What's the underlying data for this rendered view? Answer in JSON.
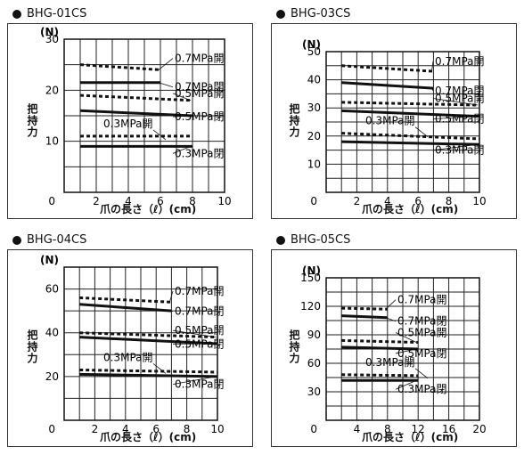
{
  "chart_data": [
    {
      "type": "line",
      "title": "BHG-01CS",
      "xlabel": "爪の長さ（ℓ）(cm)",
      "ylabel": "把持力",
      "yunit": "(N)",
      "xlim": [
        0,
        10
      ],
      "ylim": [
        0,
        30
      ],
      "xticks": [
        0,
        2,
        4,
        6,
        8,
        10
      ],
      "yticks": [
        10,
        20,
        30
      ],
      "origin_label": "0",
      "series": [
        {
          "name": "0.7MPa開",
          "style": "dotted",
          "x": [
            1,
            6
          ],
          "y": [
            25,
            24
          ]
        },
        {
          "name": "0.7MPa閉",
          "style": "solid",
          "x": [
            1,
            6
          ],
          "y": [
            21.5,
            21.5
          ]
        },
        {
          "name": "0.5MPa開",
          "style": "dotted",
          "x": [
            1,
            8
          ],
          "y": [
            19,
            18
          ]
        },
        {
          "name": "0.5MPa閉",
          "style": "solid",
          "x": [
            1,
            8
          ],
          "y": [
            16,
            15
          ]
        },
        {
          "name": "0.3MPa開",
          "style": "dotted",
          "x": [
            1,
            8
          ],
          "y": [
            11,
            11
          ]
        },
        {
          "name": "0.3MPa閉",
          "style": "solid",
          "x": [
            1,
            8
          ],
          "y": [
            9,
            9
          ]
        }
      ]
    },
    {
      "type": "line",
      "title": "BHG-03CS",
      "xlabel": "爪の長さ（ℓ）(cm)",
      "ylabel": "把持力",
      "yunit": "(N)",
      "xlim": [
        0,
        10
      ],
      "ylim": [
        0,
        50
      ],
      "xticks": [
        0,
        2,
        4,
        6,
        8,
        10
      ],
      "yticks": [
        10,
        20,
        30,
        40,
        50
      ],
      "origin_label": "0",
      "series": [
        {
          "name": "0.7MPa開",
          "style": "dotted",
          "x": [
            1,
            7
          ],
          "y": [
            45,
            43
          ]
        },
        {
          "name": "0.7MPa閉",
          "style": "solid",
          "x": [
            1,
            7
          ],
          "y": [
            39,
            37
          ]
        },
        {
          "name": "0.5MPa開",
          "style": "dotted",
          "x": [
            1,
            10
          ],
          "y": [
            32,
            31
          ]
        },
        {
          "name": "0.5MPa閉",
          "style": "solid",
          "x": [
            1,
            10
          ],
          "y": [
            29,
            27
          ]
        },
        {
          "name": "0.3MPa開",
          "style": "dotted",
          "x": [
            1,
            10
          ],
          "y": [
            21,
            19
          ]
        },
        {
          "name": "0.3MPa閉",
          "style": "solid",
          "x": [
            1,
            10
          ],
          "y": [
            18,
            17
          ]
        }
      ]
    },
    {
      "type": "line",
      "title": "BHG-04CS",
      "xlabel": "爪の長さ（ℓ）(cm)",
      "ylabel": "把持力",
      "yunit": "(N)",
      "xlim": [
        0,
        10
      ],
      "ylim": [
        0,
        70
      ],
      "xticks": [
        0,
        2,
        4,
        6,
        8,
        10
      ],
      "yticks": [
        20,
        40,
        60
      ],
      "origin_label": "0",
      "series": [
        {
          "name": "0.7MPa開",
          "style": "dotted",
          "x": [
            1,
            7
          ],
          "y": [
            56,
            54
          ]
        },
        {
          "name": "0.7MPa閉",
          "style": "solid",
          "x": [
            1,
            7
          ],
          "y": [
            53,
            50
          ]
        },
        {
          "name": "0.5MPa開",
          "style": "dotted",
          "x": [
            1,
            10
          ],
          "y": [
            40,
            38
          ]
        },
        {
          "name": "0.5MPa閉",
          "style": "solid",
          "x": [
            1,
            10
          ],
          "y": [
            38,
            35
          ]
        },
        {
          "name": "0.3MPa開",
          "style": "dotted",
          "x": [
            1,
            10
          ],
          "y": [
            23,
            22
          ]
        },
        {
          "name": "0.3MPa閉",
          "style": "solid",
          "x": [
            1,
            10
          ],
          "y": [
            21,
            20
          ]
        }
      ]
    },
    {
      "type": "line",
      "title": "BHG-05CS",
      "xlabel": "爪の長さ（ℓ）(cm)",
      "ylabel": "把持力",
      "yunit": "(N)",
      "xlim": [
        0,
        20
      ],
      "ylim": [
        0,
        150
      ],
      "xticks": [
        0,
        4,
        8,
        12,
        16,
        20
      ],
      "yticks": [
        30,
        60,
        90,
        120,
        150
      ],
      "origin_label": "0",
      "series": [
        {
          "name": "0.7MPa開",
          "style": "dotted",
          "x": [
            2,
            8
          ],
          "y": [
            118,
            117
          ]
        },
        {
          "name": "0.7MPa閉",
          "style": "solid",
          "x": [
            2,
            8
          ],
          "y": [
            110,
            108
          ]
        },
        {
          "name": "0.5MPa開",
          "style": "dotted",
          "x": [
            2,
            12
          ],
          "y": [
            84,
            82
          ]
        },
        {
          "name": "0.5MPa閉",
          "style": "solid",
          "x": [
            2,
            12
          ],
          "y": [
            77,
            75
          ]
        },
        {
          "name": "0.3MPa開",
          "style": "dotted",
          "x": [
            2,
            12
          ],
          "y": [
            48,
            47
          ]
        },
        {
          "name": "0.3MPa閉",
          "style": "solid",
          "x": [
            2,
            12
          ],
          "y": [
            42,
            42
          ]
        }
      ]
    }
  ]
}
